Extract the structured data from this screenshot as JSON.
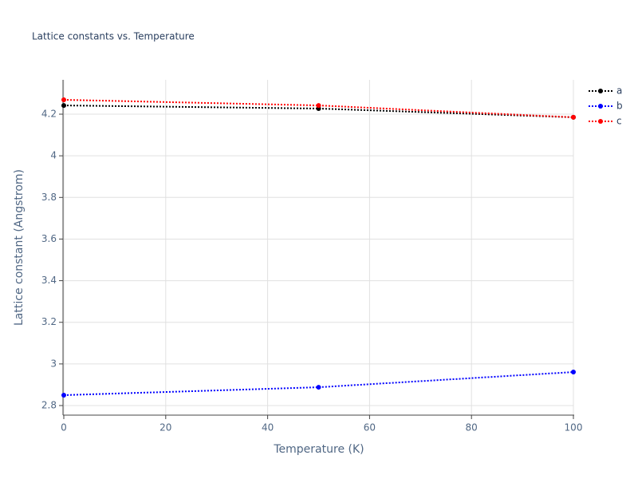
{
  "chart_data": {
    "type": "line",
    "title": "Lattice constants vs. Temperature",
    "x_label": "Temperature (K)",
    "y_label": "Lattice constant (Angstrom)",
    "x": [
      0,
      50,
      100
    ],
    "series": [
      {
        "name": "a",
        "color": "#000000",
        "values": [
          4.242,
          4.227,
          4.185
        ]
      },
      {
        "name": "b",
        "color": "#0000ff",
        "values": [
          2.85,
          2.888,
          2.961
        ]
      },
      {
        "name": "c",
        "color": "#ff0000",
        "values": [
          4.269,
          4.242,
          4.185
        ]
      }
    ],
    "xlim": [
      0,
      100
    ],
    "xticks": [
      0,
      20,
      40,
      60,
      80,
      100
    ],
    "ylim": [
      2.754,
      4.365
    ],
    "yticks": [
      2.8,
      3,
      3.2,
      3.4,
      3.6,
      3.8,
      4,
      4.2
    ],
    "grid": true,
    "legend_position": "top-right"
  }
}
